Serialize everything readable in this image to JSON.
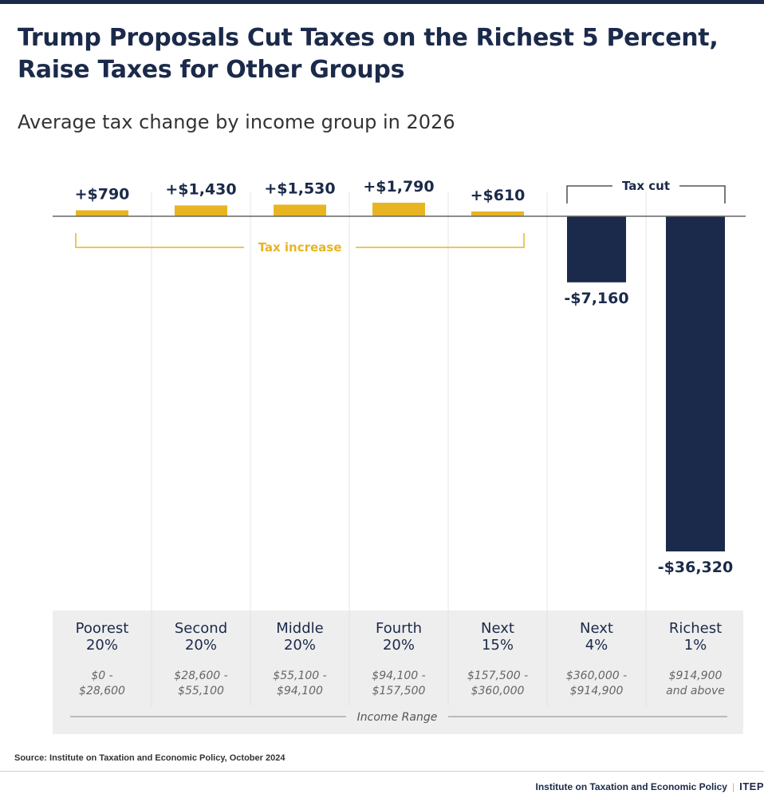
{
  "header": {
    "title": "Trump Proposals Cut Taxes on the Richest 5 Percent, Raise Taxes for Other Groups",
    "subtitle": "Average tax change by income group in 2026"
  },
  "chart_data": {
    "type": "bar",
    "title": "Trump Proposals Cut Taxes on the Richest 5 Percent, Raise Taxes for Other Groups",
    "subtitle": "Average tax change by income group in 2026",
    "categories": [
      "Poorest 20%",
      "Second 20%",
      "Middle 20%",
      "Fourth 20%",
      "Next 15%",
      "Next 4%",
      "Richest 1%"
    ],
    "group_names": [
      [
        "Poorest",
        "20%"
      ],
      [
        "Second",
        "20%"
      ],
      [
        "Middle",
        "20%"
      ],
      [
        "Fourth",
        "20%"
      ],
      [
        "Next",
        "15%"
      ],
      [
        "Next",
        "4%"
      ],
      [
        "Richest",
        "1%"
      ]
    ],
    "income_ranges": [
      [
        "$0 -",
        "$28,600"
      ],
      [
        "$28,600 -",
        "$55,100"
      ],
      [
        "$55,100 -",
        "$94,100"
      ],
      [
        "$94,100 -",
        "$157,500"
      ],
      [
        "$157,500 -",
        "$360,000"
      ],
      [
        "$360,000 -",
        "$914,900"
      ],
      [
        "$914,900",
        "and above"
      ]
    ],
    "values": [
      790,
      1430,
      1530,
      1790,
      610,
      -7160,
      -36320
    ],
    "value_labels": [
      "+$790",
      "+$1,430",
      "+$1,530",
      "+$1,790",
      "+$610",
      "-$7,160",
      "-$36,320"
    ],
    "increase_label": "Tax increase",
    "cut_label": "Tax cut",
    "xlabel": "Income Range",
    "ylabel": "",
    "ylim": [
      -36320,
      1790
    ],
    "colors": {
      "increase": "#e8b522",
      "cut": "#1b2a4a",
      "axis": "#666666",
      "panel": "#eeeeee",
      "grid": "#e6e6e6"
    }
  },
  "footer": {
    "source": "Source: Institute on Taxation and Economic Policy, October 2024",
    "org": "Institute on Taxation and Economic Policy",
    "brand": "ITEP"
  }
}
